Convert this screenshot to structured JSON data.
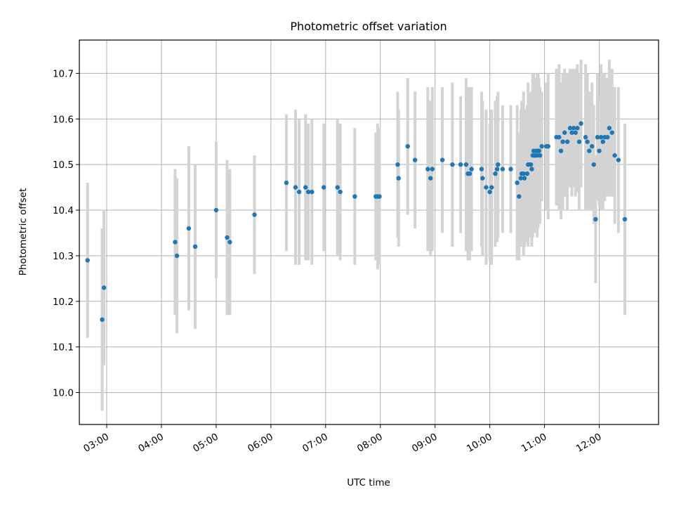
{
  "chart_data": {
    "type": "scatter",
    "title": "Photometric offset variation",
    "xlabel": "UTC time",
    "ylabel": "Photometric offset",
    "x_ticks": [
      "03:00",
      "04:00",
      "05:00",
      "06:00",
      "07:00",
      "08:00",
      "09:00",
      "10:00",
      "11:00",
      "12:00"
    ],
    "y_ticks": [
      "10.0",
      "10.1",
      "10.2",
      "10.3",
      "10.4",
      "10.5",
      "10.6",
      "10.7"
    ],
    "xlim": [
      "02:30",
      "13:05"
    ],
    "ylim": [
      9.93,
      10.773
    ],
    "grid": true,
    "marker_color": "#1f77b4",
    "errorbar_color": "#d3d3d3",
    "series": [
      {
        "x": [
          "02:39",
          "02:55",
          "02:57",
          "04:15",
          "04:17",
          "04:30",
          "04:37",
          "05:00",
          "05:12",
          "05:15",
          "05:42",
          "06:17",
          "06:27",
          "06:31",
          "06:38",
          "06:41",
          "06:45",
          "06:58",
          "07:13",
          "07:16",
          "07:32",
          "07:55",
          "07:57",
          "07:59",
          "08:19",
          "08:20",
          "08:30",
          "08:38",
          "08:52",
          "08:55",
          "08:57",
          "09:08",
          "09:19",
          "09:28",
          "09:34",
          "09:36",
          "09:38",
          "09:40",
          "09:51",
          "09:52",
          "09:56",
          "10:00",
          "10:02",
          "10:06",
          "10:08",
          "10:09",
          "10:14",
          "10:23",
          "10:32",
          "10:30",
          "10:34",
          "10:35",
          "10:37",
          "10:38",
          "10:41",
          "10:42",
          "10:44",
          "10:45",
          "10:46",
          "10:47",
          "10:48",
          "10:49",
          "10:50",
          "10:51",
          "10:52",
          "10:53",
          "10:54",
          "10:55",
          "10:57",
          "11:02",
          "11:04",
          "11:13",
          "11:16",
          "11:18",
          "11:20",
          "11:22",
          "11:25",
          "11:28",
          "11:30",
          "11:32",
          "11:34",
          "11:36",
          "11:38",
          "11:40",
          "11:45",
          "11:47",
          "11:49",
          "11:52",
          "11:54",
          "11:56",
          "11:58",
          "12:00",
          "12:02",
          "12:04",
          "12:06",
          "12:09",
          "12:11",
          "12:14",
          "12:17",
          "12:21",
          "12:28"
        ],
        "y": [
          10.29,
          10.16,
          10.23,
          10.33,
          10.3,
          10.36,
          10.32,
          10.4,
          10.34,
          10.33,
          10.39,
          10.46,
          10.45,
          10.44,
          10.45,
          10.44,
          10.44,
          10.45,
          10.45,
          10.44,
          10.43,
          10.43,
          10.43,
          10.43,
          10.5,
          10.47,
          10.54,
          10.51,
          10.49,
          10.47,
          10.49,
          10.51,
          10.5,
          10.5,
          10.5,
          10.48,
          10.48,
          10.49,
          10.49,
          10.47,
          10.45,
          10.44,
          10.45,
          10.48,
          10.49,
          10.5,
          10.49,
          10.49,
          10.43,
          10.46,
          10.47,
          10.48,
          10.48,
          10.47,
          10.48,
          10.5,
          10.5,
          10.5,
          10.49,
          10.52,
          10.53,
          10.52,
          10.52,
          10.53,
          10.52,
          10.53,
          10.53,
          10.52,
          10.54,
          10.54,
          10.54,
          10.56,
          10.56,
          10.53,
          10.55,
          10.57,
          10.55,
          10.58,
          10.57,
          10.58,
          10.57,
          10.58,
          10.55,
          10.59,
          10.56,
          10.55,
          10.53,
          10.54,
          10.5,
          10.38,
          10.56,
          10.53,
          10.56,
          10.55,
          10.56,
          10.56,
          10.58,
          10.57,
          10.52,
          10.51,
          10.38
        ],
        "yerr": [
          0.17,
          0.2,
          0.17,
          0.16,
          0.17,
          0.18,
          0.18,
          0.15,
          0.17,
          0.16,
          0.13,
          0.15,
          0.17,
          0.16,
          0.16,
          0.15,
          0.16,
          0.14,
          0.15,
          0.15,
          0.15,
          0.14,
          0.16,
          0.15,
          0.16,
          0.15,
          0.15,
          0.15,
          0.18,
          0.17,
          0.18,
          0.16,
          0.18,
          0.15,
          0.19,
          0.19,
          0.19,
          0.18,
          0.17,
          0.17,
          0.17,
          0.15,
          0.17,
          0.16,
          0.16,
          0.16,
          0.14,
          0.14,
          0.14,
          0.17,
          0.15,
          0.16,
          0.18,
          0.15,
          0.15,
          0.18,
          0.16,
          0.15,
          0.17,
          0.18,
          0.17,
          0.17,
          0.16,
          0.15,
          0.18,
          0.17,
          0.16,
          0.15,
          0.12,
          0.14,
          0.16,
          0.15,
          0.16,
          0.15,
          0.15,
          0.14,
          0.15,
          0.13,
          0.14,
          0.13,
          0.14,
          0.14,
          0.15,
          0.14,
          0.16,
          0.15,
          0.13,
          0.14,
          0.13,
          0.14,
          0.14,
          0.12,
          0.16,
          0.15,
          0.14,
          0.13,
          0.15,
          0.14,
          0.15,
          0.16,
          0.21
        ]
      }
    ]
  }
}
